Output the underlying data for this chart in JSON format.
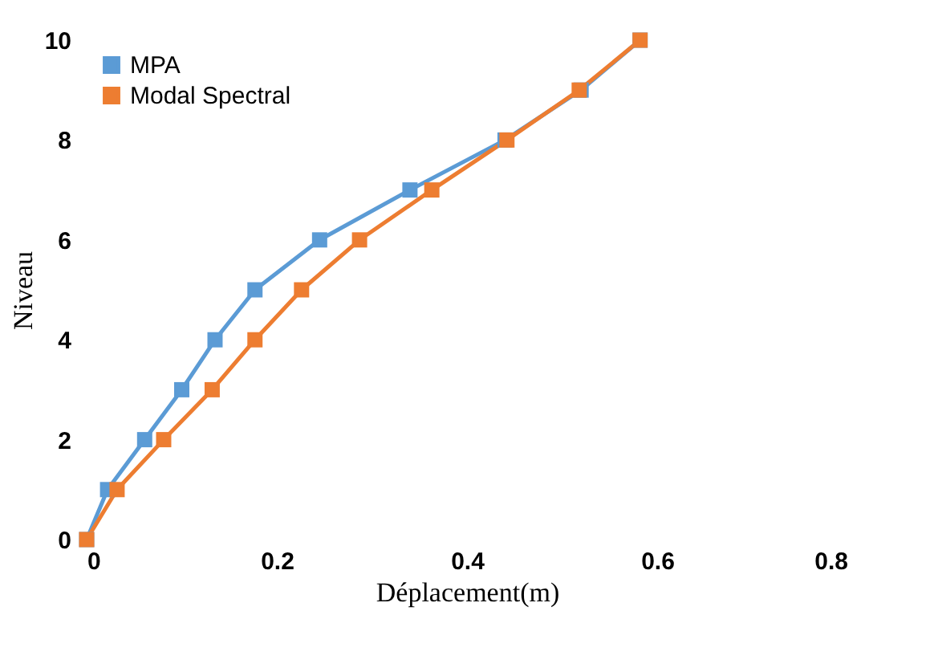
{
  "chart_data": {
    "type": "line",
    "xlabel": "Déplacement(m)",
    "ylabel": "Niveau",
    "xlim": [
      0,
      0.8
    ],
    "xticks": [
      0,
      0.2,
      0.4,
      0.6,
      0.8
    ],
    "ylim": [
      0,
      10
    ],
    "yticks": [
      0,
      2,
      4,
      6,
      8,
      10
    ],
    "grid": false,
    "legend": "top left",
    "marker": "square",
    "line_style": "solid",
    "series": [
      {
        "name": "MPA",
        "color": "#5b9bd5",
        "x": [
          0,
          0.022,
          0.061,
          0.1,
          0.135,
          0.177,
          0.245,
          0.34,
          0.44,
          0.52,
          0.582
        ],
        "values": [
          0,
          1,
          2,
          3,
          4,
          5,
          6,
          7,
          8,
          9,
          10
        ]
      },
      {
        "name": "Modal Spectral",
        "color": "#ed7d31",
        "x": [
          0,
          0.032,
          0.081,
          0.132,
          0.177,
          0.226,
          0.287,
          0.363,
          0.442,
          0.518,
          0.582
        ],
        "values": [
          0,
          1,
          2,
          3,
          4,
          5,
          6,
          7,
          8,
          9,
          10
        ]
      }
    ]
  }
}
